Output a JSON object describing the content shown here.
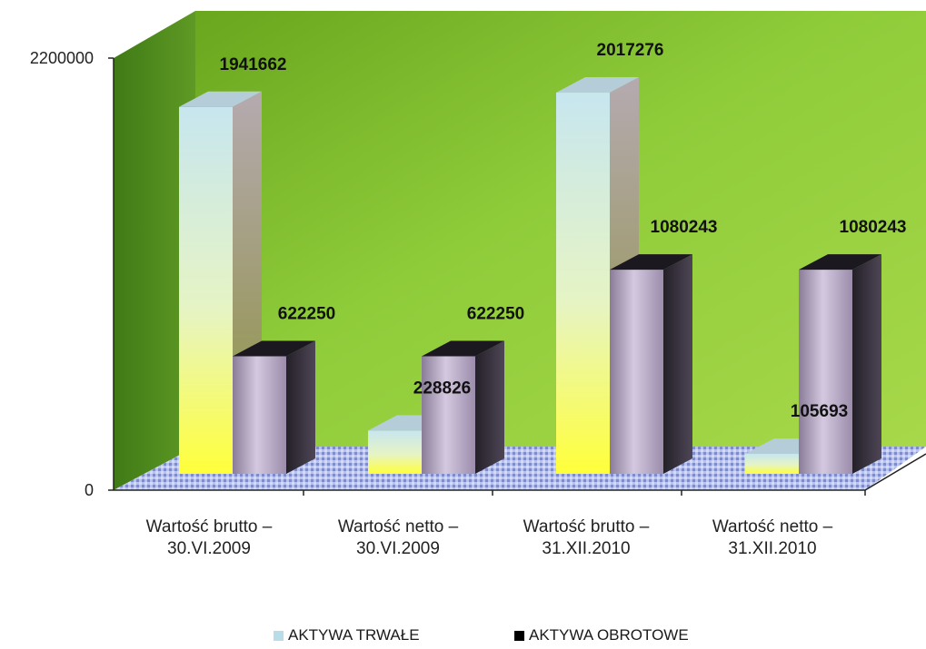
{
  "chart_data": {
    "type": "bar",
    "categories": [
      [
        "Wartość brutto –",
        "30.VI.2009"
      ],
      [
        "Wartość netto –",
        "30.VI.2009"
      ],
      [
        "Wartość brutto –",
        "31.XII.2010"
      ],
      [
        "Wartość netto –",
        "31.XII.2010"
      ]
    ],
    "series": [
      {
        "name": "AKTYWA TRWAŁE",
        "values": [
          1941662,
          228826,
          2017276,
          105693
        ],
        "color": "#b7dde8"
      },
      {
        "name": "AKTYWA OBROTOWE",
        "values": [
          622250,
          622250,
          1080243,
          1080243
        ],
        "color": "#000000"
      }
    ],
    "data_labels": [
      [
        "1941662",
        "622250"
      ],
      [
        "228826",
        "622250"
      ],
      [
        "2017276",
        "1080243"
      ],
      [
        "105693",
        "1080243"
      ]
    ],
    "y_ticks": [
      "2200000",
      "0"
    ],
    "ylim": [
      0,
      2200000
    ],
    "wall_color": "#8cc63f",
    "floor_color": "#9aa6d8",
    "legend_position": "bottom",
    "grid": false
  }
}
